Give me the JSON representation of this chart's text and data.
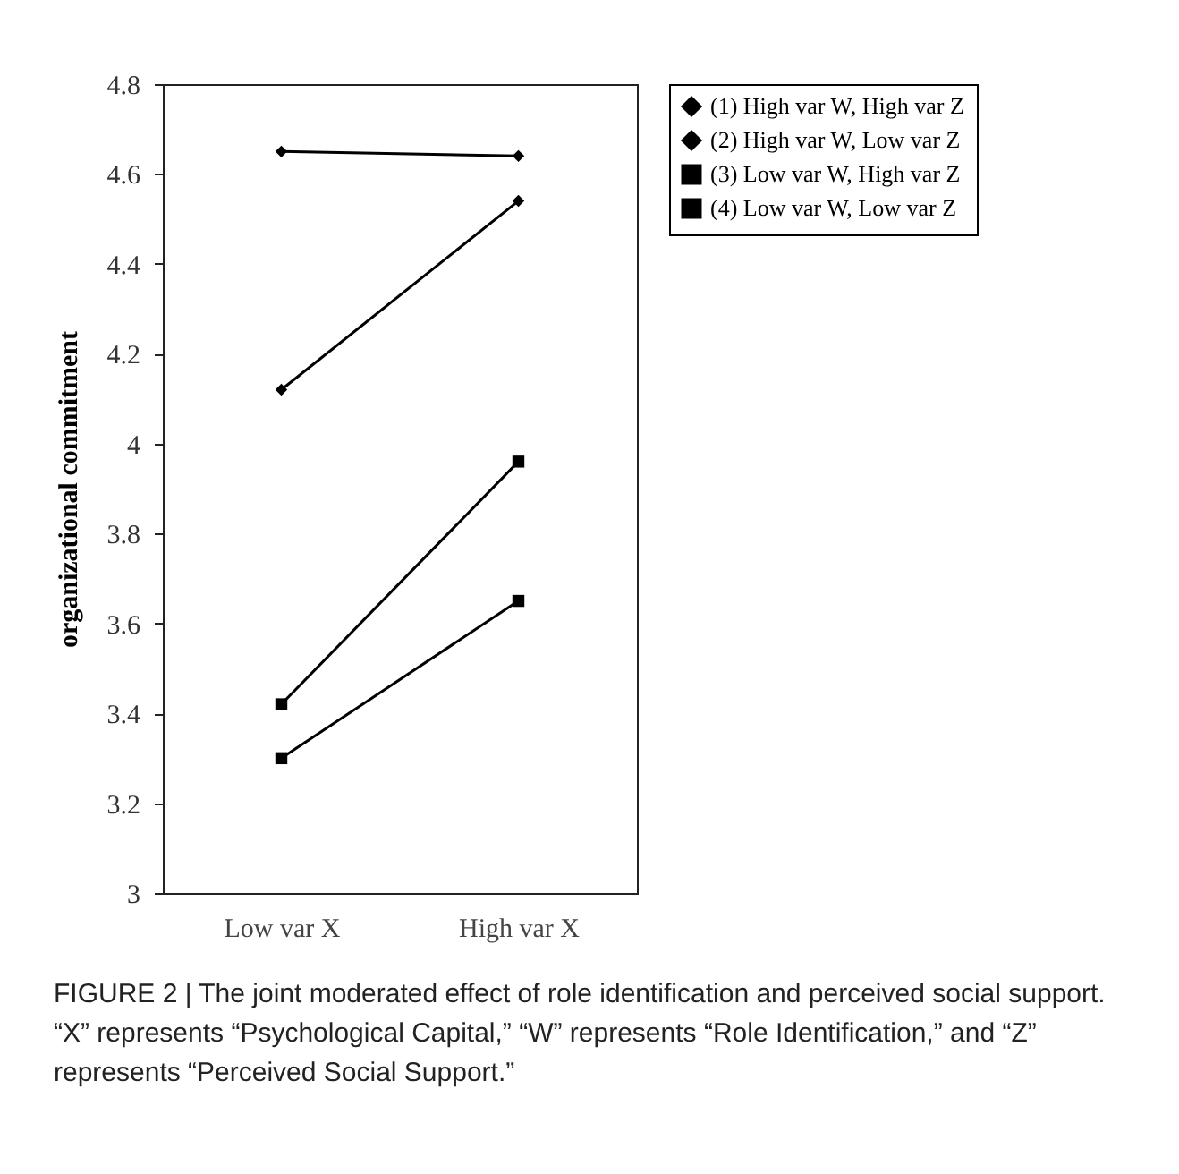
{
  "chart_data": {
    "type": "line",
    "ylabel": "organizational commitment",
    "categories": [
      "Low var X",
      "High var X"
    ],
    "series": [
      {
        "name": "(1) High var W, High var Z",
        "color": "#000000",
        "marker": "diamond",
        "values": [
          4.65,
          4.64
        ]
      },
      {
        "name": "(2) High var W, Low var Z",
        "color": "#000000",
        "marker": "diamond",
        "values": [
          4.12,
          4.54
        ]
      },
      {
        "name": "(3) Low var W, High var Z",
        "color": "#000000",
        "marker": "square",
        "values": [
          3.42,
          3.96
        ]
      },
      {
        "name": "(4) Low var W, Low var Z",
        "color": "#000000",
        "marker": "square",
        "values": [
          3.3,
          3.65
        ]
      }
    ],
    "ylim": [
      3,
      4.8
    ],
    "yticks": [
      3,
      3.2,
      3.4,
      3.6,
      3.8,
      4,
      4.2,
      4.4,
      4.6,
      4.8
    ],
    "grid": false,
    "legend": "right",
    "annotations": [
      "FIGURE 2 | The joint moderated effect of role identification and perceived social support. “X” represents “Psychological Capital,” “W” represents “Role Identification,” and “Z” represents “Perceived Social Support.”"
    ]
  }
}
